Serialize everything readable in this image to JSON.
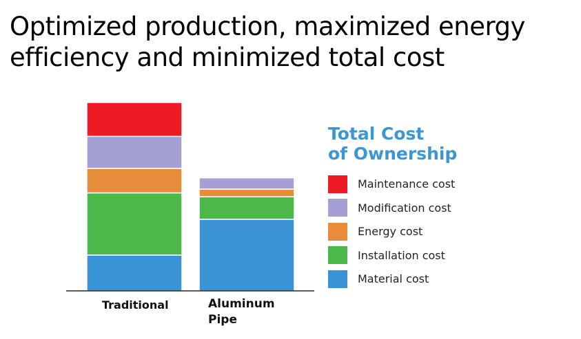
{
  "page": {
    "title": "Optimized production, maximized energy\nefficiency and minimized total cost"
  },
  "chart_data": {
    "type": "bar",
    "stacked": true,
    "title": "Total Cost\nof Ownership",
    "xlabel": "",
    "ylabel": "",
    "categories": [
      "Traditional",
      "Aluminum\nPipe"
    ],
    "series": [
      {
        "name": "Material cost",
        "color": "#3a93d4",
        "values": [
          19,
          38
        ]
      },
      {
        "name": "Installation cost",
        "color": "#4cb84a",
        "values": [
          33,
          12
        ]
      },
      {
        "name": "Energy cost",
        "color": "#e68c3a",
        "values": [
          13,
          4
        ]
      },
      {
        "name": "Modification cost",
        "color": "#a4a0d3",
        "values": [
          17,
          6
        ]
      },
      {
        "name": "Maintenance cost",
        "color": "#ed1c24",
        "values": [
          18,
          0
        ]
      }
    ],
    "ylim": [
      0,
      100
    ],
    "axes_visible": false,
    "grid": false,
    "legend_position": "right"
  }
}
